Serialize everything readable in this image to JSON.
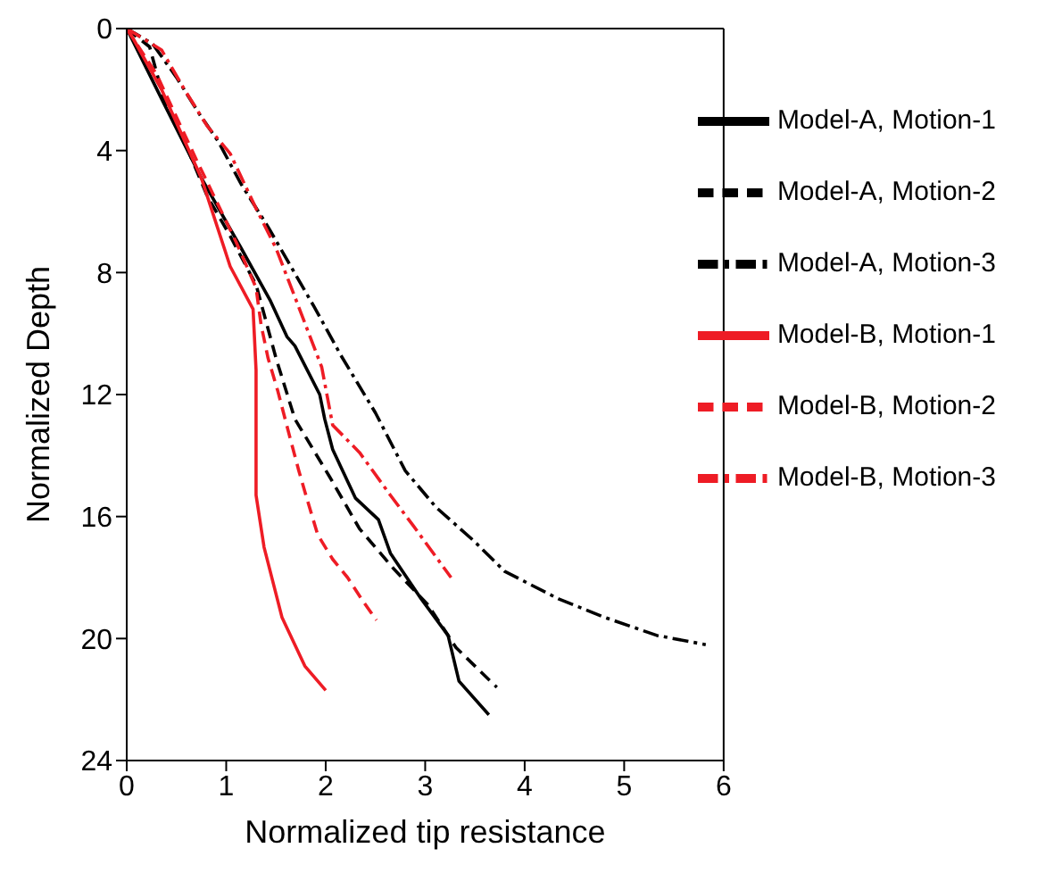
{
  "chart_data": {
    "type": "line",
    "xlabel": "Normalized tip resistance",
    "ylabel": "Normalized Depth",
    "xlim": [
      0,
      6
    ],
    "xticks": [
      0,
      1,
      2,
      3,
      4,
      5,
      6
    ],
    "ylim": [
      24,
      0
    ],
    "yticks": [
      0,
      4,
      8,
      12,
      16,
      20,
      24
    ],
    "grid": false,
    "legend": "top right",
    "marker": "none",
    "series": [
      {
        "name": "Model-A, Motion-1",
        "color": "#000000",
        "line_style": "solid",
        "x": [
          0,
          0.35,
          0.75,
          1.15,
          1.44,
          1.61,
          1.69,
          1.94,
          1.99,
          2.07,
          2.3,
          2.53,
          2.65,
          2.96,
          3.23,
          3.34,
          3.64
        ],
        "values": [
          0,
          2.3,
          4.9,
          7.2,
          8.9,
          10.1,
          10.4,
          12.0,
          12.8,
          13.8,
          15.4,
          16.1,
          17.2,
          18.7,
          19.9,
          21.4,
          22.5
        ]
      },
      {
        "name": "Model-A, Motion-2",
        "color": "#000000",
        "line_style": "dashed",
        "x": [
          0,
          0.23,
          0.38,
          0.58,
          0.81,
          1.04,
          1.3,
          1.5,
          1.69,
          2.04,
          2.34,
          2.68,
          3.03,
          3.31,
          3.72
        ],
        "values": [
          0,
          0.6,
          2.4,
          3.7,
          5.5,
          6.8,
          8.4,
          10.8,
          12.8,
          14.7,
          16.4,
          17.7,
          18.9,
          20.3,
          21.6
        ]
      },
      {
        "name": "Model-A, Motion-3",
        "color": "#000000",
        "line_style": "dashdot",
        "x": [
          0,
          0.26,
          0.5,
          0.73,
          0.92,
          1.15,
          1.42,
          1.65,
          1.88,
          2.15,
          2.5,
          2.8,
          3.11,
          3.49,
          3.8,
          4.34,
          4.8,
          5.33,
          5.82
        ],
        "values": [
          0,
          0.5,
          1.6,
          2.8,
          3.7,
          5.1,
          6.5,
          7.8,
          9.1,
          10.7,
          12.6,
          14.5,
          15.7,
          16.8,
          17.8,
          18.7,
          19.3,
          19.9,
          20.2
        ]
      },
      {
        "name": "Model-B, Motion-1",
        "color": "#ee1c25",
        "line_style": "solid",
        "x": [
          0,
          0.06,
          0.35,
          0.75,
          1.04,
          1.27,
          1.3,
          1.3,
          1.3,
          1.38,
          1.56,
          1.79,
          2.0
        ],
        "values": [
          0,
          0.3,
          2.0,
          4.9,
          7.8,
          9.2,
          11.2,
          13.5,
          15.3,
          17.0,
          19.3,
          20.9,
          21.7
        ]
      },
      {
        "name": "Model-B, Motion-2",
        "color": "#ee1c25",
        "line_style": "dashed",
        "x": [
          0,
          0.3,
          0.7,
          1.1,
          1.3,
          1.35,
          1.42,
          1.52,
          1.64,
          1.73,
          1.81,
          1.92,
          2.07,
          2.22,
          2.38,
          2.51
        ],
        "values": [
          0,
          1.5,
          4.3,
          7.0,
          8.5,
          9.7,
          10.8,
          11.9,
          13.4,
          14.5,
          15.4,
          16.6,
          17.4,
          18.0,
          18.8,
          19.4
        ]
      },
      {
        "name": "Model-B, Motion-3",
        "color": "#ee1c25",
        "line_style": "dashdot",
        "x": [
          0,
          0.35,
          0.58,
          0.81,
          1.04,
          1.3,
          1.5,
          1.69,
          1.96,
          2.07,
          2.34,
          2.65,
          2.88,
          3.26
        ],
        "values": [
          0,
          0.7,
          2.0,
          3.2,
          4.1,
          5.9,
          7.2,
          8.8,
          11.1,
          13.0,
          13.9,
          15.3,
          16.3,
          18.0
        ]
      }
    ]
  }
}
